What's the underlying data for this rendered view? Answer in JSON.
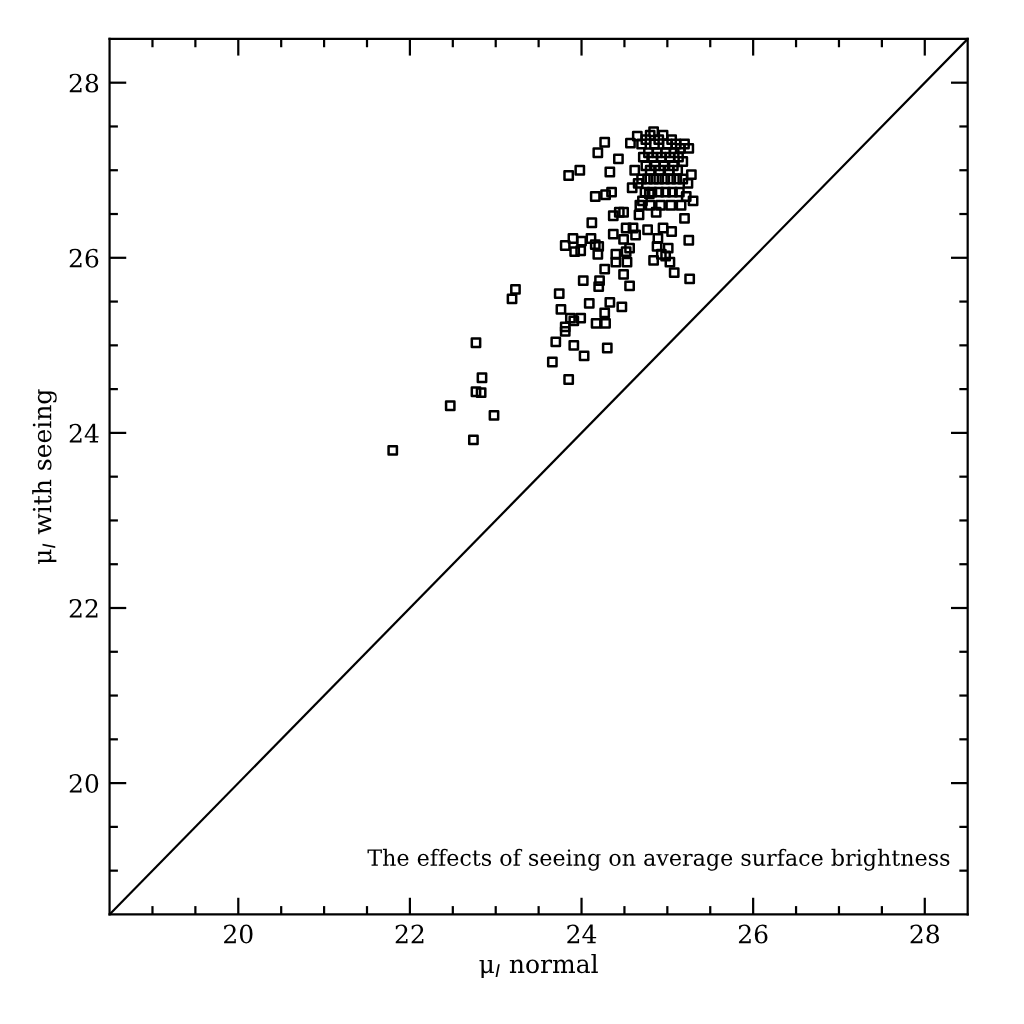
{
  "chart_data": {
    "type": "scatter",
    "xlabel": "μ$_{I}$ normal",
    "ylabel": "μ$_{I}$ with seeing",
    "annotations": [
      "The effects of seeing on average surface brightness"
    ],
    "xlim": [
      18.5,
      28.5
    ],
    "ylim": [
      18.5,
      28.5
    ],
    "xticks": [
      {
        "value": 19,
        "label": null
      },
      {
        "value": 19.5,
        "label": null
      },
      20,
      {
        "value": 20.5,
        "label": null
      },
      {
        "value": 21,
        "label": null
      },
      {
        "value": 21.5,
        "label": null
      },
      22,
      {
        "value": 22.5,
        "label": null
      },
      {
        "value": 23,
        "label": null
      },
      {
        "value": 23.5,
        "label": null
      },
      24,
      {
        "value": 24.5,
        "label": null
      },
      {
        "value": 25,
        "label": null
      },
      {
        "value": 25.5,
        "label": null
      },
      26,
      {
        "value": 26.5,
        "label": null
      },
      {
        "value": 27,
        "label": null
      },
      {
        "value": 27.5,
        "label": null
      },
      28
    ],
    "yticks": [
      {
        "value": 19,
        "label": null
      },
      {
        "value": 19.5,
        "label": null
      },
      20,
      {
        "value": 20.5,
        "label": null
      },
      {
        "value": 21,
        "label": null
      },
      {
        "value": 21.5,
        "label": null
      },
      22,
      {
        "value": 22.5,
        "label": null
      },
      {
        "value": 23,
        "label": null
      },
      {
        "value": 23.5,
        "label": null
      },
      24,
      {
        "value": 24.5,
        "label": null
      },
      {
        "value": 25,
        "label": null
      },
      {
        "value": 25.5,
        "label": null
      },
      26,
      {
        "value": 26.5,
        "label": null
      },
      {
        "value": 27,
        "label": null
      },
      {
        "value": 27.5,
        "label": null
      },
      28
    ],
    "grid": false,
    "series": [
      {
        "marker": "square",
        "color": "#000000",
        "x": [
          21.8,
          22.47,
          22.74,
          22.77,
          22.83,
          22.84,
          22.98,
          22.77,
          23.19,
          23.23,
          23.66,
          23.85,
          23.7,
          23.74,
          23.76,
          23.81,
          23.91,
          24.03,
          23.99,
          23.87,
          23.91,
          23.81,
          24.3,
          24.17,
          24.28,
          24.27,
          24.33,
          24.47,
          24.56,
          24.09,
          24.21,
          24.02,
          24.2,
          24.27,
          24.49,
          24.4,
          24.53,
          24.4,
          24.19,
          23.81,
          23.9,
          24.0,
          23.99,
          23.92,
          24.11,
          24.2,
          24.16,
          24.12,
          24.37,
          24.49,
          24.52,
          24.44,
          24.37,
          24.49,
          24.16,
          24.28,
          24.35,
          24.33,
          23.85,
          23.98,
          24.19,
          24.27,
          24.43,
          24.57,
          24.65,
          24.84,
          24.6,
          24.63,
          24.56,
          24.52,
          24.88,
          24.93,
          25.01,
          24.98,
          24.84,
          25.03,
          25.08,
          24.89,
          24.77,
          25.05,
          24.95,
          24.67,
          24.87,
          24.71,
          24.79,
          24.59,
          25.26,
          24.7,
          24.75,
          24.8,
          24.85,
          24.9,
          24.95,
          25.0,
          25.05,
          25.1,
          25.15,
          25.2,
          25.25,
          24.72,
          24.78,
          24.83,
          24.88,
          24.93,
          24.98,
          25.03,
          25.08,
          25.13,
          25.18,
          24.75,
          24.8,
          24.86,
          24.91,
          24.96,
          25.02,
          25.07,
          25.12,
          24.7,
          24.77,
          24.84,
          24.9,
          24.97,
          25.04,
          25.11,
          25.18,
          25.24,
          24.74,
          24.82,
          24.9,
          24.98,
          25.06,
          25.14,
          25.22,
          24.68,
          24.8,
          24.92,
          25.04,
          25.16,
          24.62,
          24.66,
          25.28,
          25.3,
          25.2,
          25.25
        ],
        "values": [
          23.8,
          24.31,
          23.92,
          24.47,
          24.46,
          24.63,
          24.2,
          25.03,
          25.53,
          25.64,
          24.81,
          24.61,
          25.04,
          25.59,
          25.41,
          25.16,
          25.0,
          24.88,
          25.31,
          25.31,
          25.28,
          25.21,
          24.97,
          25.25,
          25.25,
          25.37,
          25.49,
          25.44,
          25.68,
          25.48,
          25.74,
          25.74,
          25.67,
          25.87,
          25.81,
          25.95,
          25.95,
          26.04,
          26.04,
          26.14,
          26.22,
          26.19,
          26.08,
          26.07,
          26.22,
          26.13,
          26.15,
          26.4,
          26.27,
          26.21,
          26.34,
          26.52,
          26.48,
          26.52,
          26.7,
          26.72,
          26.75,
          26.98,
          26.94,
          27.0,
          27.2,
          27.32,
          27.13,
          27.31,
          27.39,
          27.44,
          26.34,
          26.26,
          26.11,
          26.07,
          26.13,
          26.04,
          26.11,
          26.02,
          25.97,
          25.95,
          25.83,
          26.22,
          26.32,
          26.3,
          26.34,
          26.49,
          26.52,
          26.65,
          26.73,
          26.8,
          25.76,
          27.3,
          27.35,
          27.4,
          27.3,
          27.35,
          27.4,
          27.3,
          27.35,
          27.3,
          27.25,
          27.3,
          27.25,
          27.15,
          27.2,
          27.15,
          27.2,
          27.15,
          27.2,
          27.15,
          27.2,
          27.15,
          27.1,
          27.05,
          27.0,
          27.05,
          27.0,
          27.05,
          27.0,
          27.05,
          27.0,
          26.9,
          26.9,
          26.9,
          26.9,
          26.9,
          26.9,
          26.9,
          26.9,
          26.85,
          26.75,
          26.75,
          26.75,
          26.75,
          26.75,
          26.75,
          26.7,
          26.6,
          26.6,
          26.6,
          26.6,
          26.6,
          27.0,
          26.85,
          26.95,
          26.65,
          26.45,
          26.2
        ]
      },
      {
        "type": "line",
        "color": "#000000",
        "x": [
          18.5,
          28.5
        ],
        "values": [
          18.5,
          28.5
        ]
      }
    ]
  }
}
